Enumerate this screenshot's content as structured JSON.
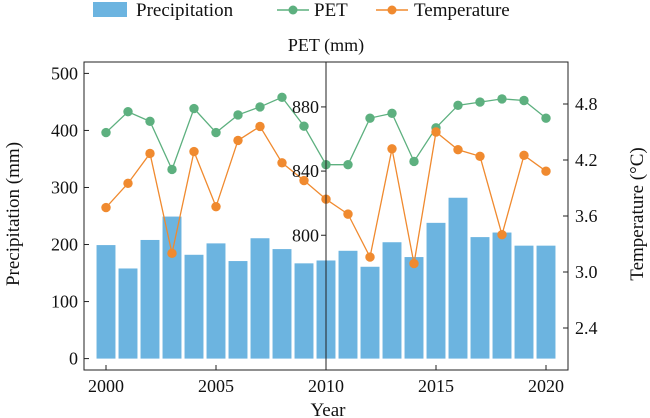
{
  "chart_data": {
    "type": "bar",
    "x": [
      2000,
      2001,
      2002,
      2003,
      2004,
      2005,
      2006,
      2007,
      2008,
      2009,
      2010,
      2011,
      2012,
      2013,
      2014,
      2015,
      2016,
      2017,
      2018,
      2019,
      2020
    ],
    "xlabel": "Year",
    "xlim": [
      1999,
      2021
    ],
    "xticks": [
      2000,
      2005,
      2010,
      2015,
      2020
    ],
    "ylabel": "Precipitation (mm)",
    "ylim": [
      -20,
      520
    ],
    "yticks": [
      0,
      100,
      200,
      300,
      400,
      500
    ],
    "y2label": "Temperature (°C)",
    "y2lim": [
      1.95,
      5.25
    ],
    "y2ticks": [
      "2.4",
      "3.0",
      "3.6",
      "4.2",
      "4.8"
    ],
    "y3label": "PET (mm)",
    "y3lim": [
      716,
      908
    ],
    "y3ticks": [
      800,
      840,
      880
    ],
    "legend_position": "top",
    "grid": false,
    "series": [
      {
        "name": "Precipitation",
        "type": "bar",
        "axis": "left",
        "color": "#6cb4e0",
        "values": [
          199,
          158,
          208,
          249,
          182,
          202,
          171,
          211,
          192,
          167,
          172,
          189,
          161,
          204,
          178,
          238,
          282,
          213,
          221,
          198,
          198
        ]
      },
      {
        "name": "PET",
        "type": "line",
        "axis": "pet",
        "color": "#5db07f",
        "values": [
          864,
          877,
          871,
          841,
          879,
          864,
          875,
          880,
          886,
          868,
          844,
          844,
          873,
          876,
          846,
          867,
          881,
          883,
          885,
          884,
          873
        ]
      },
      {
        "name": "Temperature",
        "type": "line",
        "axis": "right",
        "color": "#f08a2f",
        "values": [
          3.69,
          3.95,
          4.27,
          3.2,
          4.29,
          3.7,
          4.41,
          4.56,
          4.17,
          3.98,
          3.78,
          3.62,
          3.16,
          4.32,
          3.09,
          4.5,
          4.31,
          4.24,
          3.4,
          4.25,
          4.08
        ]
      }
    ]
  }
}
